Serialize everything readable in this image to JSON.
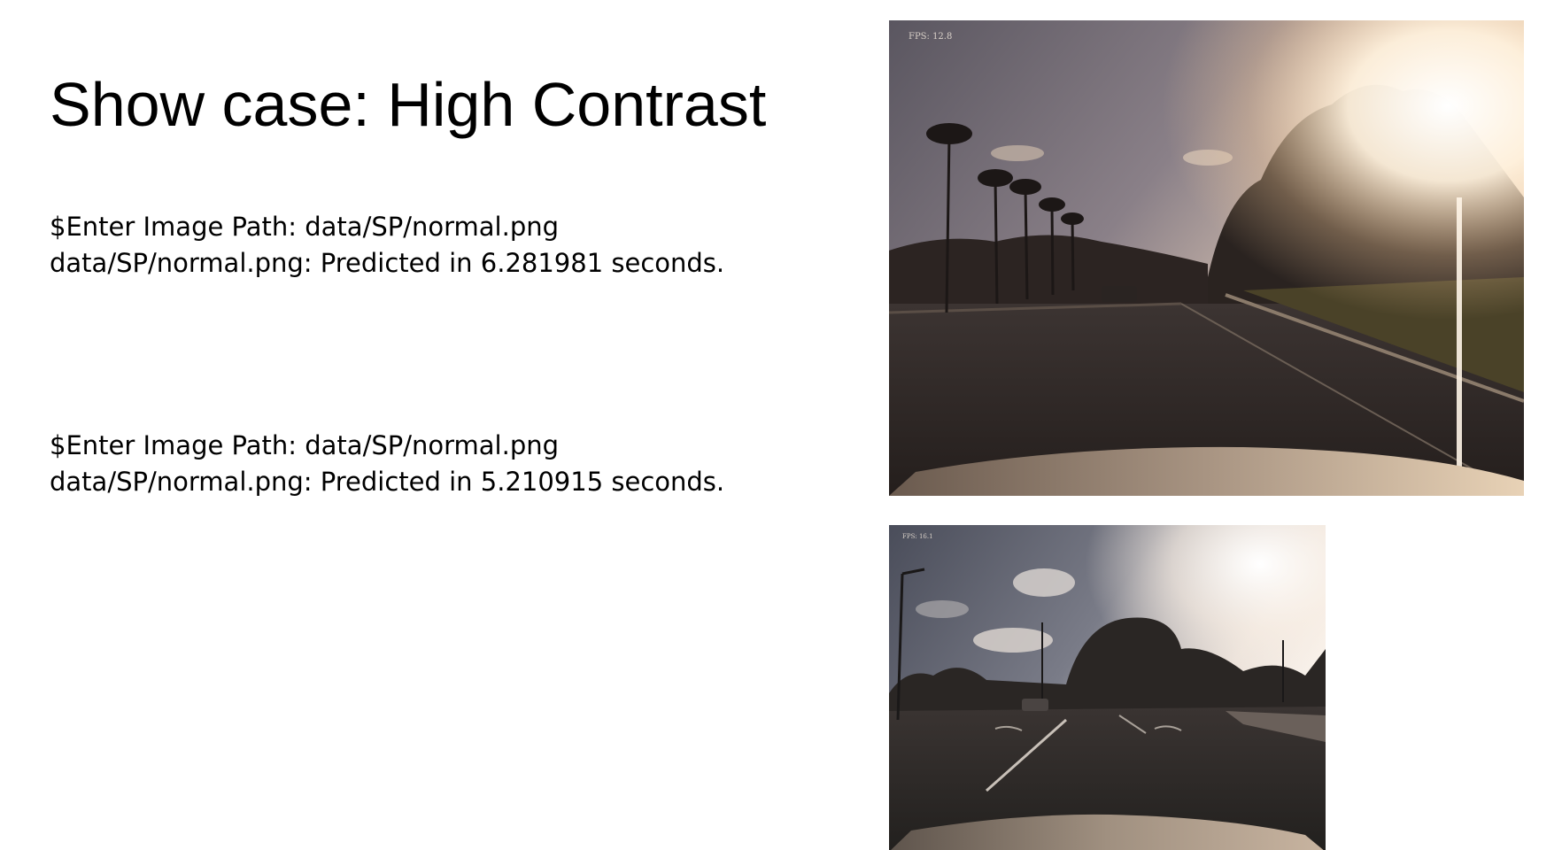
{
  "slide": {
    "title": "Show case: High Contrast"
  },
  "logs": [
    {
      "command": "$Enter Image Path: data/SP/normal.png",
      "result": "data/SP/normal.png: Predicted in 6.281981 seconds."
    },
    {
      "command": "$Enter Image Path: data/SP/normal.png",
      "result": "data/SP/normal.png: Predicted in 5.210915 seconds."
    }
  ],
  "frames": [
    {
      "fps_label": "FPS: 12.8",
      "scene": "road with palm trees, strong sun glare from upper right"
    },
    {
      "fps_label": "FPS: 16.1",
      "scene": "road intersection with trees, bright sky at upper right"
    }
  ]
}
